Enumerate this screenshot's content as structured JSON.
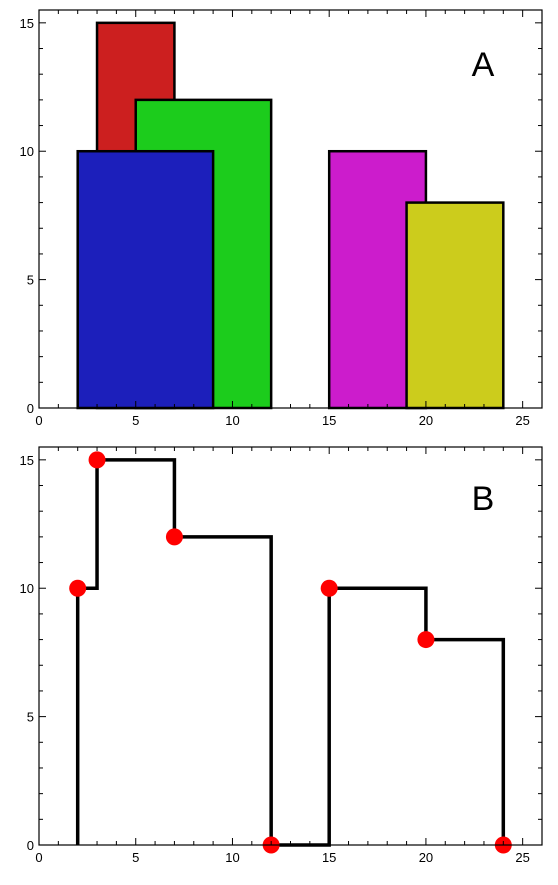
{
  "chart_data": [
    {
      "type": "bar",
      "panel_label": "A",
      "xlim": [
        0,
        26
      ],
      "ylim": [
        0,
        15.5
      ],
      "xticks": [
        0,
        5,
        10,
        15,
        20,
        25
      ],
      "yticks": [
        0,
        5,
        10,
        15
      ],
      "grid": false,
      "buildings": [
        {
          "left": 3,
          "right": 7,
          "height": 15,
          "color": "#cc1f1f"
        },
        {
          "left": 5,
          "right": 12,
          "height": 12,
          "color": "#1ccc1c"
        },
        {
          "left": 2,
          "right": 9,
          "height": 10,
          "color": "#1c1fbb"
        },
        {
          "left": 15,
          "right": 20,
          "height": 10,
          "color": "#cc1ccc"
        },
        {
          "left": 19,
          "right": 24,
          "height": 8,
          "color": "#cccc1c"
        }
      ]
    },
    {
      "type": "line",
      "panel_label": "B",
      "xlim": [
        0,
        26
      ],
      "ylim": [
        0,
        15.5
      ],
      "xticks": [
        0,
        5,
        10,
        15,
        20,
        25
      ],
      "yticks": [
        0,
        5,
        10,
        15
      ],
      "grid": false,
      "skyline_points": [
        [
          2,
          10
        ],
        [
          3,
          15
        ],
        [
          7,
          12
        ],
        [
          12,
          0
        ],
        [
          15,
          10
        ],
        [
          20,
          8
        ],
        [
          24,
          0
        ]
      ],
      "line_color": "#000000",
      "marker_color": "#ff0000"
    }
  ]
}
